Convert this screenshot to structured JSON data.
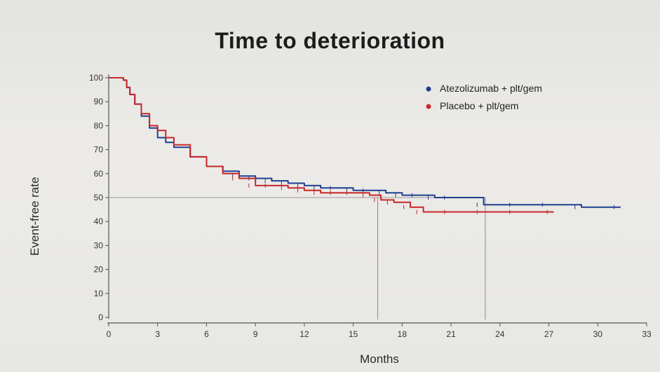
{
  "chart_data": {
    "type": "line",
    "title": "Time to deterioration",
    "xlabel": "Months",
    "ylabel": "Event-free rate",
    "xlim": [
      0,
      33
    ],
    "ylim": [
      0,
      100
    ],
    "xticks": [
      0,
      3,
      6,
      9,
      12,
      15,
      18,
      21,
      24,
      27,
      30,
      33
    ],
    "yticks": [
      0,
      10,
      20,
      30,
      40,
      50,
      60,
      70,
      80,
      90,
      100
    ],
    "legend_position": "top-right",
    "median_reference": 50,
    "median_markers": [
      16.5,
      23.1
    ],
    "series": [
      {
        "name": "Atezolizumab + plt/gem",
        "color": "#1f3f8f",
        "x": [
          0,
          0.9,
          1.1,
          1.3,
          1.6,
          2.0,
          2.5,
          3.0,
          3.5,
          4.0,
          5.0,
          6.0,
          7.0,
          8.0,
          9.0,
          10.0,
          11.0,
          12.0,
          13.0,
          14.0,
          15.0,
          16.0,
          17.0,
          18.0,
          19.0,
          20.0,
          21.0,
          23.0,
          25.0,
          27.0,
          29.0,
          31.4
        ],
        "y": [
          100,
          99,
          96,
          93,
          89,
          84,
          79,
          75,
          73,
          71,
          67,
          63,
          61,
          59,
          58,
          57,
          56,
          55,
          54,
          54,
          53,
          53,
          52,
          51,
          51,
          50,
          50,
          47,
          47,
          47,
          46,
          46
        ]
      },
      {
        "name": "Placebo + plt/gem",
        "color": "#c62828",
        "x": [
          0,
          0.9,
          1.1,
          1.3,
          1.6,
          2.0,
          2.5,
          3.0,
          3.5,
          4.0,
          5.0,
          6.0,
          7.0,
          8.0,
          9.0,
          10.0,
          11.0,
          12.0,
          13.0,
          14.0,
          15.0,
          16.0,
          16.7,
          17.5,
          18.5,
          19.3,
          21.0,
          23.0,
          25.0,
          27.3
        ],
        "y": [
          100,
          99,
          96,
          93,
          89,
          85,
          80,
          78,
          75,
          72,
          67,
          63,
          60,
          58,
          55,
          55,
          54,
          53,
          52,
          52,
          52,
          51,
          49,
          48,
          46,
          44,
          44,
          44,
          44,
          44
        ]
      }
    ]
  }
}
